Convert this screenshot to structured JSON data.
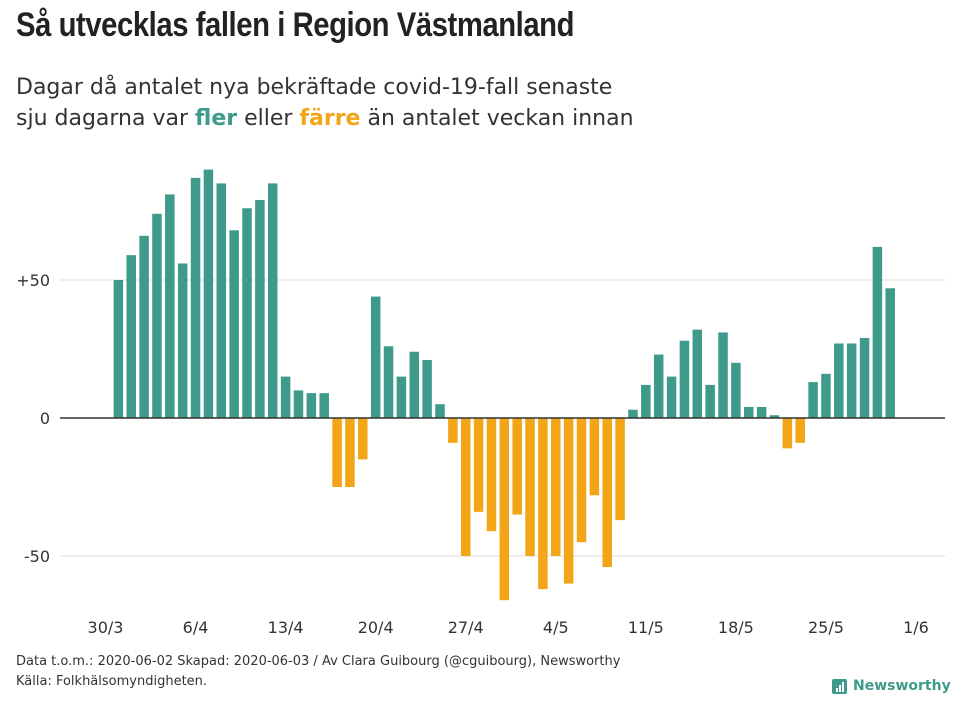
{
  "title": "Så utvecklas fallen i Region Västmanland",
  "subtitle": {
    "line1": "Dagar då antalet nya bekräftade covid-19-fall senaste",
    "line2_prefix": "sju dagarna var ",
    "word_more": "fler",
    "middle": " eller ",
    "word_less": "färre",
    "line2_suffix": " än antalet veckan innan"
  },
  "colors": {
    "positive": "#3e9a8a",
    "negative": "#f2a516",
    "grid": "#dddddd",
    "zero": "#333333"
  },
  "chart_data": {
    "type": "bar",
    "title": "Så utvecklas fallen i Region Västmanland",
    "xlabel": "",
    "ylabel": "",
    "ylim": [
      -68,
      95
    ],
    "yticks": [
      {
        "value": 50,
        "label": "+50"
      },
      {
        "value": 0,
        "label": "0"
      },
      {
        "value": -50,
        "label": "-50"
      }
    ],
    "x_tick_labels": [
      {
        "index": 0,
        "label": "30/3"
      },
      {
        "index": 7,
        "label": "6/4"
      },
      {
        "index": 14,
        "label": "13/4"
      },
      {
        "index": 21,
        "label": "20/4"
      },
      {
        "index": 28,
        "label": "27/4"
      },
      {
        "index": 35,
        "label": "4/5"
      },
      {
        "index": 42,
        "label": "11/5"
      },
      {
        "index": 49,
        "label": "18/5"
      },
      {
        "index": 56,
        "label": "25/5"
      },
      {
        "index": 63,
        "label": "1/6"
      }
    ],
    "values": [
      50,
      59,
      66,
      74,
      81,
      56,
      87,
      90,
      85,
      68,
      76,
      79,
      85,
      15,
      10,
      9,
      9,
      -25,
      -25,
      -15,
      44,
      26,
      15,
      24,
      21,
      5,
      -9,
      -50,
      -34,
      -41,
      -66,
      -35,
      -50,
      -62,
      -50,
      -60,
      -45,
      -28,
      -54,
      -37,
      3,
      12,
      23,
      15,
      28,
      32,
      12,
      31,
      20,
      4,
      4,
      1,
      -11,
      -9,
      13,
      16,
      27,
      27,
      29,
      62,
      47
    ],
    "x_start_index": 1
  },
  "footer": {
    "line1": "Data t.o.m.: 2020-06-02 Skapad: 2020-06-03 / Av Clara Guibourg (@cguibourg), Newsworthy",
    "line2": "Källa: Folkhälsomyndigheten."
  },
  "brand": {
    "name": "Newsworthy",
    "icon": "newsworthy-logo-icon"
  }
}
